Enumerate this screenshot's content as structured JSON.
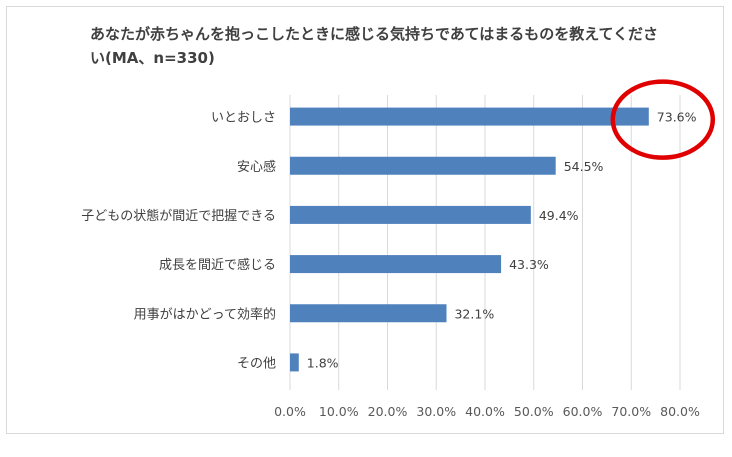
{
  "chart_data": {
    "type": "bar",
    "orientation": "horizontal",
    "title": "あなたが赤ちゃんを抱っこしたときに感じる気持ちであてはまるものを教えてください(MA、n=330)",
    "categories": [
      "いとおしさ",
      "安心感",
      "子どもの状態が間近で把握できる",
      "成長を間近で感じる",
      "用事がはかどって効率的",
      "その他"
    ],
    "values": [
      73.6,
      54.5,
      49.4,
      43.3,
      32.1,
      1.8
    ],
    "value_labels": [
      "73.6%",
      "54.5%",
      "49.4%",
      "43.3%",
      "32.1%",
      "1.8%"
    ],
    "xlim": [
      0,
      80
    ],
    "x_ticks": [
      "0.0%",
      "10.0%",
      "20.0%",
      "30.0%",
      "40.0%",
      "50.0%",
      "60.0%",
      "70.0%",
      "80.0%"
    ],
    "grid": "vertical",
    "bar_color": "#4f81bd",
    "annotation": {
      "type": "red-circle",
      "target": "いとおしさ",
      "color": "#e00000"
    }
  }
}
